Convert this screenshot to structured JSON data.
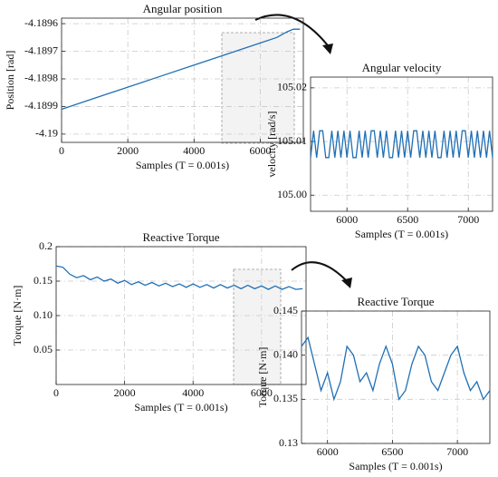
{
  "chart_data": [
    {
      "type": "line",
      "title": "Angular position",
      "xlabel": "Samples (T = 0.001s)",
      "ylabel": "Position [rad]",
      "grid": true,
      "xlim": [
        0,
        7300
      ],
      "xticks": [
        0,
        2000,
        4000,
        6000
      ],
      "ylim": [
        -4.19003,
        -4.18958
      ],
      "yticks": [
        -4.19,
        -4.1899,
        -4.1898,
        -4.1897,
        -4.1896
      ],
      "series": [
        {
          "color": "#1f6fb5",
          "x": [
            0,
            1000,
            2000,
            3000,
            4000,
            5000,
            5500,
            6000,
            6500,
            6800,
            7000,
            7200
          ],
          "values": [
            -4.18991,
            -4.18987,
            -4.18983,
            -4.18979,
            -4.18975,
            -4.18971,
            -4.18969,
            -4.18967,
            -4.18965,
            -4.18963,
            -4.18962,
            -4.18962
          ]
        }
      ]
    },
    {
      "type": "line",
      "title": "Angular velocity",
      "xlabel": "Samples (T = 0.001s)",
      "ylabel": "velocity [rad/s]",
      "grid": true,
      "xlim": [
        5700,
        7200
      ],
      "xticks": [
        6000,
        6500,
        7000
      ],
      "ylim": [
        104.997,
        105.022
      ],
      "yticks": [
        {
          "value": 105,
          "label": "105.00"
        },
        105.01,
        105.02
      ],
      "series": [
        {
          "color": "#1f6fb5",
          "x": [
            5700,
            5725,
            5750,
            5775,
            5800,
            5825,
            5850,
            5875,
            5900,
            5925,
            5950,
            5975,
            6000,
            6025,
            6050,
            6075,
            6100,
            6125,
            6150,
            6175,
            6200,
            6225,
            6250,
            6275,
            6300,
            6325,
            6350,
            6375,
            6400,
            6425,
            6450,
            6475,
            6500,
            6525,
            6550,
            6575,
            6600,
            6625,
            6650,
            6675,
            6700,
            6725,
            6750,
            6775,
            6800,
            6825,
            6850,
            6875,
            6900,
            6925,
            6950,
            6975,
            7000,
            7025,
            7050,
            7075,
            7100,
            7125,
            7150,
            7175,
            7200
          ],
          "values": [
            105.007,
            105.012,
            105.007,
            105.012,
            105.012,
            105.007,
            105.007,
            105.012,
            105.007,
            105.012,
            105.007,
            105.012,
            105.007,
            105.012,
            105.007,
            105.007,
            105.012,
            105.007,
            105.012,
            105.007,
            105.012,
            105.012,
            105.007,
            105.012,
            105.007,
            105.012,
            105.007,
            105.007,
            105.012,
            105.007,
            105.012,
            105.007,
            105.012,
            105.007,
            105.012,
            105.012,
            105.007,
            105.012,
            105.007,
            105.012,
            105.007,
            105.012,
            105.007,
            105.007,
            105.012,
            105.007,
            105.012,
            105.007,
            105.012,
            105.007,
            105.012,
            105.012,
            105.007,
            105.012,
            105.007,
            105.012,
            105.007,
            105.012,
            105.007,
            105.012,
            105.007
          ]
        }
      ]
    },
    {
      "type": "line",
      "title": "Reactive Torque",
      "xlabel": "Samples (T = 0.001s)",
      "ylabel": "Torque [N·m]",
      "grid": true,
      "xlim": [
        0,
        7300
      ],
      "xticks": [
        0,
        2000,
        4000,
        6000
      ],
      "ylim": [
        0,
        0.2
      ],
      "yticks": [
        0.05,
        {
          "value": 0.1,
          "label": "0.10"
        },
        0.15,
        0.2
      ],
      "series": [
        {
          "color": "#1f6fb5",
          "x": [
            0,
            200,
            400,
            600,
            800,
            1000,
            1200,
            1400,
            1600,
            1800,
            2000,
            2200,
            2400,
            2600,
            2800,
            3000,
            3200,
            3400,
            3600,
            3800,
            4000,
            4200,
            4400,
            4600,
            4800,
            5000,
            5200,
            5400,
            5600,
            5800,
            6000,
            6200,
            6400,
            6600,
            6800,
            7000,
            7200
          ],
          "values": [
            0.172,
            0.17,
            0.16,
            0.155,
            0.158,
            0.152,
            0.156,
            0.15,
            0.153,
            0.147,
            0.151,
            0.145,
            0.149,
            0.144,
            0.148,
            0.143,
            0.147,
            0.142,
            0.146,
            0.141,
            0.146,
            0.141,
            0.145,
            0.14,
            0.145,
            0.14,
            0.144,
            0.139,
            0.144,
            0.139,
            0.143,
            0.138,
            0.143,
            0.138,
            0.142,
            0.138,
            0.139
          ]
        }
      ]
    },
    {
      "type": "line",
      "title": "Reactive Torque",
      "xlabel": "Samples (T = 0.001s)",
      "ylabel": "Torque [N·m]",
      "grid": true,
      "xlim": [
        5800,
        7250
      ],
      "xticks": [
        6000,
        6500,
        7000
      ],
      "ylim": [
        0.13,
        0.145
      ],
      "yticks": [
        0.13,
        0.135,
        {
          "value": 0.14,
          "label": "0.140"
        },
        0.145
      ],
      "series": [
        {
          "color": "#1f6fb5",
          "x": [
            5800,
            5850,
            5900,
            5950,
            6000,
            6050,
            6100,
            6150,
            6200,
            6250,
            6300,
            6350,
            6400,
            6450,
            6500,
            6550,
            6600,
            6650,
            6700,
            6750,
            6800,
            6850,
            6900,
            6950,
            7000,
            7050,
            7100,
            7150,
            7200,
            7250
          ],
          "values": [
            0.141,
            0.142,
            0.139,
            0.136,
            0.138,
            0.135,
            0.137,
            0.141,
            0.14,
            0.137,
            0.138,
            0.136,
            0.139,
            0.141,
            0.139,
            0.135,
            0.136,
            0.139,
            0.141,
            0.14,
            0.137,
            0.136,
            0.138,
            0.14,
            0.141,
            0.138,
            0.136,
            0.137,
            0.135,
            0.136
          ]
        }
      ]
    }
  ]
}
